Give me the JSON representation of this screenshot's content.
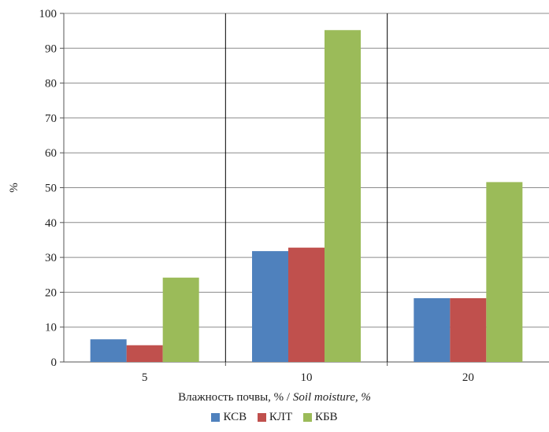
{
  "chart_data": {
    "type": "bar",
    "title": "",
    "ylabel": "%",
    "xlabel_main": "Влажность почвы, % /",
    "xlabel_italic": "Soil moisture, %",
    "categories": [
      "5",
      "10",
      "20"
    ],
    "ylim": [
      0,
      100
    ],
    "yticks": [
      0,
      10,
      20,
      30,
      40,
      50,
      60,
      70,
      80,
      90,
      100
    ],
    "grid": true,
    "legend_position": "bottom",
    "series": [
      {
        "name": "КСВ",
        "color": "#4f81bd",
        "values": [
          6.5,
          31.8,
          18.3
        ]
      },
      {
        "name": "КЛТ",
        "color": "#c0504d",
        "values": [
          4.8,
          32.8,
          18.3
        ]
      },
      {
        "name": "КБВ",
        "color": "#9bbb59",
        "values": [
          24.2,
          95.2,
          51.6
        ]
      }
    ]
  }
}
